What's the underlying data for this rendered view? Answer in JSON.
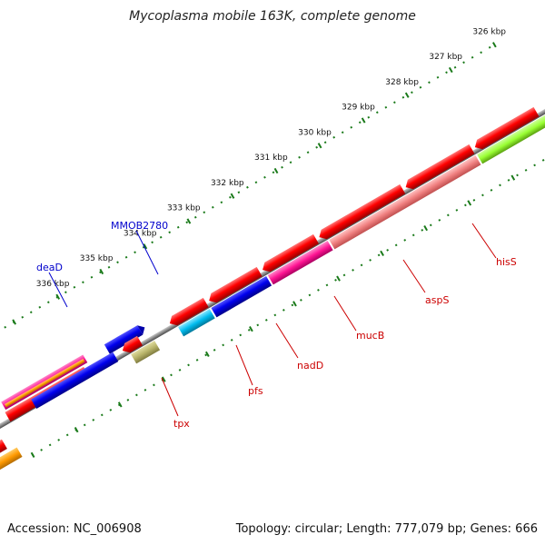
{
  "title": "Mycoplasma mobile 163K, complete genome",
  "footer": {
    "accession": "Accession: NC_006908",
    "summary": "Topology: circular; Length: 777,079 bp; Genes: 666"
  },
  "scale": {
    "unit": "kbp",
    "labels": [
      "326 kbp",
      "327 kbp",
      "328 kbp",
      "329 kbp",
      "330 kbp",
      "331 kbp",
      "332 kbp",
      "333 kbp",
      "334 kbp",
      "335 kbp",
      "336 kbp"
    ]
  },
  "genes": {
    "forward": [
      {
        "label": "MMOB2780",
        "color": "#0000cc"
      },
      {
        "label": "deaD",
        "color": "#0000cc"
      }
    ],
    "reverse": [
      {
        "label": "hisS",
        "color": "#cc0000"
      },
      {
        "label": "aspS",
        "color": "#cc0000"
      },
      {
        "label": "mucB",
        "color": "#cc0000"
      },
      {
        "label": "nadD",
        "color": "#cc0000"
      },
      {
        "label": "pfs",
        "color": "#cc0000"
      },
      {
        "label": "tpx",
        "color": "#cc0000"
      }
    ]
  },
  "colors": {
    "backbone": "#8a8a8a",
    "tick": "#1a7a1a",
    "red": "#ff0000",
    "blue": "#0000ee",
    "cyan": "#00bbee",
    "pink": "#ff1493",
    "salmon": "#f08080",
    "orange": "#ff9900",
    "olive": "#b8b46a",
    "lime": "#99ff33"
  }
}
